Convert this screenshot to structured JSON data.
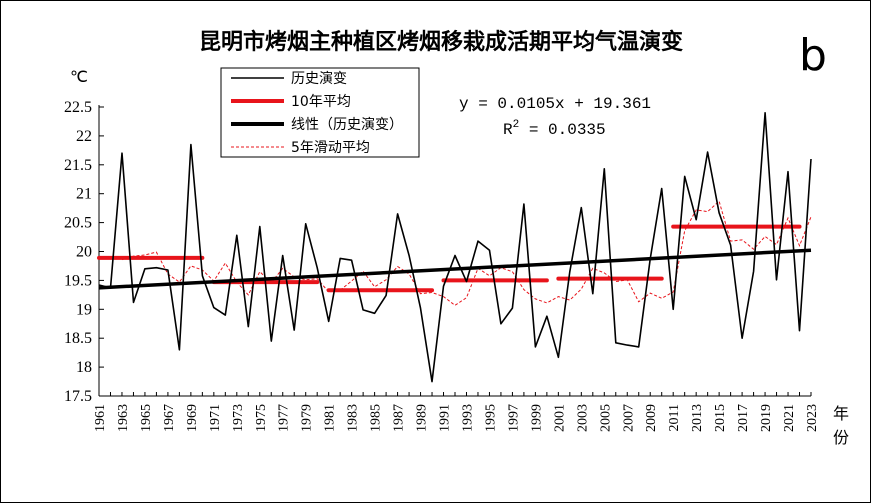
{
  "chart_data": {
    "type": "line",
    "title": "昆明市烤烟主种植区烤烟移栽成活期平均气温演变",
    "panel_label": "b",
    "ylabel": "℃",
    "xlabel": [
      "年",
      "份"
    ],
    "ylim": [
      17.5,
      22.5
    ],
    "yticks": [
      "17.5",
      "18",
      "18.5",
      "19",
      "19.5",
      "20",
      "20.5",
      "21",
      "21.5",
      "22",
      "22.5"
    ],
    "xlim": [
      1961,
      2023
    ],
    "xticks": [
      "1961",
      "1963",
      "1965",
      "1967",
      "1969",
      "1971",
      "1973",
      "1975",
      "1977",
      "1979",
      "1981",
      "1983",
      "1985",
      "1987",
      "1989",
      "1991",
      "1993",
      "1995",
      "1997",
      "1999",
      "2001",
      "2003",
      "2005",
      "2007",
      "2009",
      "2011",
      "2013",
      "2015",
      "2017",
      "2019",
      "2021",
      "2023"
    ],
    "legend": {
      "history": "历史演变",
      "decade_avg": "10年平均",
      "linear": "线性（历史演变）",
      "moving_avg": "5年滑动平均"
    },
    "equation": {
      "line": "y = 0.0105x + 19.361",
      "r2_label": "R",
      "r2_sup": "2",
      "r2_value": " = 0.0335"
    },
    "series": {
      "years_start": 1961,
      "history": [
        19.42,
        19.37,
        21.7,
        19.12,
        19.7,
        19.72,
        19.68,
        18.3,
        21.85,
        19.58,
        19.03,
        18.9,
        20.28,
        18.7,
        20.43,
        18.45,
        19.93,
        18.64,
        20.48,
        19.72,
        18.79,
        19.88,
        19.85,
        18.99,
        18.93,
        19.24,
        20.65,
        19.93,
        19.02,
        17.75,
        19.4,
        19.93,
        19.48,
        20.18,
        20.02,
        18.75,
        19.02,
        20.82,
        18.35,
        18.88,
        18.17,
        19.65,
        20.76,
        19.27,
        21.43,
        18.42,
        18.38,
        18.35,
        19.87,
        21.09,
        19.0,
        21.3,
        20.55,
        21.72,
        20.67,
        20.11,
        18.5,
        19.66,
        22.4,
        19.51,
        21.38,
        18.63,
        21.6
      ],
      "moving_avg": [
        null,
        null,
        19.86,
        19.92,
        19.94,
        19.99,
        19.61,
        19.47,
        19.75,
        19.68,
        19.49,
        19.8,
        19.47,
        19.25,
        19.65,
        19.46,
        19.71,
        19.56,
        19.51,
        19.53,
        19.3,
        19.33,
        19.49,
        19.66,
        19.39,
        19.51,
        19.74,
        19.61,
        19.27,
        19.29,
        19.22,
        19.07,
        19.2,
        19.71,
        19.58,
        19.72,
        19.65,
        19.34,
        19.18,
        19.11,
        19.22,
        19.16,
        19.35,
        19.71,
        19.63,
        19.48,
        19.51,
        19.13,
        19.28,
        19.19,
        19.3,
        20.36,
        20.72,
        20.69,
        20.87,
        20.18,
        20.2,
        20.04,
        20.26,
        20.12,
        20.58,
        20.1,
        20.6
      ],
      "decade_avg": [
        {
          "from": 1961,
          "to": 1970,
          "value": 19.89
        },
        {
          "from": 1971,
          "to": 1980,
          "value": 19.47
        },
        {
          "from": 1981,
          "to": 1990,
          "value": 19.33
        },
        {
          "from": 1991,
          "to": 2000,
          "value": 19.5
        },
        {
          "from": 2001,
          "to": 2010,
          "value": 19.53
        },
        {
          "from": 2011,
          "to": 2022,
          "value": 20.43
        }
      ],
      "linear": {
        "slope": 0.0105,
        "intercept": 19.361
      }
    }
  }
}
